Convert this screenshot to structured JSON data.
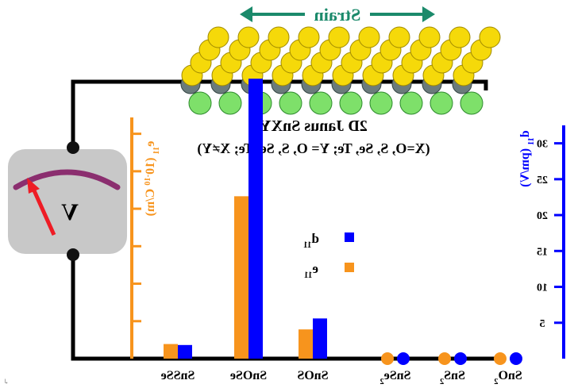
{
  "figure": {
    "strain_label": "Strain",
    "structure_title": "2D Janus SnXY",
    "structure_subtitle": "(X=O, S, Se, Te; Y= O, S, Se, Te; X≠Y)",
    "voltmeter_label": "V",
    "mirrored": true
  },
  "colors": {
    "e11": "#f7941d",
    "d11": "#0000ff",
    "strain": "#1b8a6b",
    "meter_arc": "#8b2e6f",
    "needle": "#ee1c25",
    "meter_body": "#c8c8c8",
    "wire": "#000000",
    "atom_yellow": "#f5d90a",
    "atom_green": "#7ee06a",
    "atom_grey": "#6b7b7b"
  },
  "chart_data": {
    "type": "bar",
    "categories": [
      "SnO2",
      "SnS2",
      "SnSe2",
      "SnOS",
      "SnOSe",
      "SnSSe"
    ],
    "category_labels": [
      {
        "base": "SnO",
        "sub": "2"
      },
      {
        "base": "SnS",
        "sub": "2"
      },
      {
        "base": "SnSe",
        "sub": "2"
      },
      {
        "base": "SnOS",
        "sub": ""
      },
      {
        "base": "SnOSe",
        "sub": ""
      },
      {
        "base": "SnSSe",
        "sub": ""
      }
    ],
    "series": [
      {
        "name": "d11",
        "name_base": "d",
        "name_sub": "11",
        "axis": "d11",
        "values": [
          0,
          0,
          0,
          5.6,
          39.0,
          1.9
        ],
        "color": "#0000ff"
      },
      {
        "name": "e11",
        "name_base": "e",
        "name_sub": "11",
        "axis": "e11",
        "values": [
          0,
          0,
          0,
          3.6,
          20.0,
          1.8
        ],
        "color": "#f7941d"
      }
    ],
    "zero_markers": [
      "SnO2",
      "SnS2",
      "SnSe2"
    ],
    "axes": {
      "d11": {
        "label_base": "d",
        "label_sub": "11",
        "label_unit": " (pm/V)",
        "ticks": [
          5,
          10,
          15,
          20,
          25,
          30
        ],
        "ylim": [
          0,
          32.5
        ],
        "color": "#0000ff"
      },
      "e11": {
        "label_base": "e",
        "label_sub": "11",
        "label_unit": " (10",
        "label_sup": "-10",
        "label_tail": " C/m)",
        "ylim": [
          0,
          30
        ],
        "tick_count": 6,
        "color": "#f7941d"
      }
    }
  }
}
